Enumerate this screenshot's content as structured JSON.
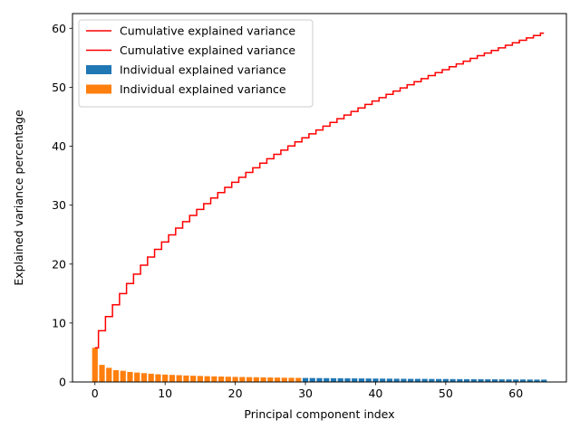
{
  "chart_data": {
    "type": "bar",
    "xlabel": "Principal component index",
    "ylabel": "Explained variance percentage",
    "xlim": [
      -3.2,
      67.2
    ],
    "ylim": [
      0,
      62.5
    ],
    "xticks": [
      0,
      10,
      20,
      30,
      40,
      50,
      60
    ],
    "yticks": [
      0,
      10,
      20,
      30,
      40,
      50,
      60
    ],
    "grid": false,
    "legend_position": "top-left",
    "colors": {
      "blue": "#1f77b4",
      "orange": "#ff7f0e",
      "red": "#ff0000"
    },
    "legend": [
      {
        "label": "Cumulative explained variance",
        "kind": "line",
        "color": "#ff0000"
      },
      {
        "label": "Cumulative explained variance",
        "kind": "line",
        "color": "#ff0000"
      },
      {
        "label": "Individual explained variance",
        "kind": "bar",
        "color": "#1f77b4"
      },
      {
        "label": "Individual explained variance",
        "kind": "bar",
        "color": "#ff7f0e"
      }
    ],
    "series": [
      {
        "name": "Individual explained variance",
        "kind": "bar",
        "color": "#1f77b4",
        "x": [
          30,
          31,
          32,
          33,
          34,
          35,
          36,
          37,
          38,
          39,
          40,
          41,
          42,
          43,
          44,
          45,
          46,
          47,
          48,
          49,
          50,
          51,
          52,
          53,
          54,
          55,
          56,
          57,
          58,
          59,
          60,
          61,
          62,
          63,
          64
        ],
        "values": [
          0.68,
          0.67,
          0.66,
          0.65,
          0.64,
          0.63,
          0.62,
          0.61,
          0.6,
          0.59,
          0.58,
          0.57,
          0.56,
          0.55,
          0.54,
          0.53,
          0.53,
          0.52,
          0.51,
          0.5,
          0.5,
          0.49,
          0.48,
          0.47,
          0.47,
          0.46,
          0.45,
          0.45,
          0.44,
          0.43,
          0.42,
          0.42,
          0.41,
          0.4,
          0.4
        ]
      },
      {
        "name": "Individual explained variance",
        "kind": "bar",
        "color": "#ff7f0e",
        "x": [
          0,
          1,
          2,
          3,
          4,
          5,
          6,
          7,
          8,
          9,
          10,
          11,
          12,
          13,
          14,
          15,
          16,
          17,
          18,
          19,
          20,
          21,
          22,
          23,
          24,
          25,
          26,
          27,
          28,
          29
        ],
        "values": [
          5.8,
          2.9,
          2.4,
          2.0,
          1.9,
          1.7,
          1.6,
          1.5,
          1.4,
          1.3,
          1.25,
          1.2,
          1.15,
          1.1,
          1.06,
          1.02,
          0.98,
          0.95,
          0.92,
          0.89,
          0.86,
          0.84,
          0.82,
          0.8,
          0.78,
          0.76,
          0.74,
          0.72,
          0.71,
          0.69
        ]
      },
      {
        "name": "Cumulative explained variance",
        "kind": "step",
        "color": "#ff0000",
        "x": [
          0,
          1,
          2,
          3,
          4,
          5,
          6,
          7,
          8,
          9,
          10,
          11,
          12,
          13,
          14,
          15,
          16,
          17,
          18,
          19,
          20,
          21,
          22,
          23,
          24,
          25,
          26,
          27,
          28,
          29,
          30,
          31,
          32,
          33,
          34,
          35,
          36,
          37,
          38,
          39,
          40,
          41,
          42,
          43,
          44,
          45,
          46,
          47,
          48,
          49,
          50,
          51,
          52,
          53,
          54,
          55,
          56,
          57,
          58,
          59,
          60,
          61,
          62,
          63,
          64
        ],
        "values": [
          5.8,
          8.7,
          11.1,
          13.1,
          15.0,
          16.7,
          18.3,
          19.8,
          21.2,
          22.5,
          23.75,
          24.95,
          26.1,
          27.2,
          28.26,
          29.28,
          30.26,
          31.21,
          32.13,
          33.02,
          33.88,
          34.72,
          35.54,
          36.34,
          37.12,
          37.88,
          38.62,
          39.34,
          40.05,
          40.74,
          41.42,
          42.09,
          42.75,
          43.4,
          44.04,
          44.67,
          45.29,
          45.9,
          46.5,
          47.09,
          47.67,
          48.24,
          48.8,
          49.35,
          49.89,
          50.42,
          50.95,
          51.47,
          51.98,
          52.48,
          52.98,
          53.47,
          53.95,
          54.42,
          54.89,
          55.35,
          55.8,
          56.25,
          56.69,
          57.12,
          57.54,
          57.96,
          58.37,
          58.77,
          59.17
        ]
      }
    ]
  }
}
